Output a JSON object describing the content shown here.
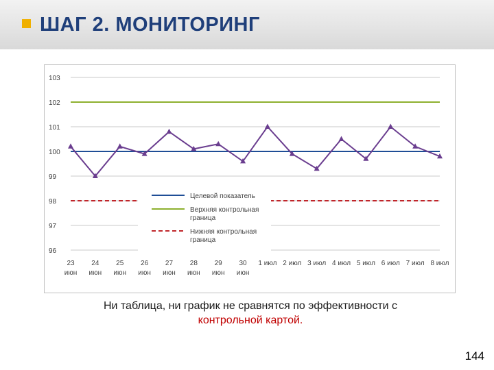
{
  "header": {
    "title": "ШАГ 2. МОНИТОРИНГ",
    "bullet_color": "#f0b000",
    "title_color": "#1f3f7a"
  },
  "chart_data": {
    "type": "line",
    "title": "",
    "xlabel": "",
    "ylabel": "",
    "ylim": [
      96,
      103
    ],
    "yticks": [
      "96",
      "97",
      "98",
      "99",
      "100",
      "101",
      "102",
      "103"
    ],
    "grid": true,
    "legend_position": "center",
    "categories": [
      [
        "23",
        "июн"
      ],
      [
        "24",
        "июн"
      ],
      [
        "25",
        "июн"
      ],
      [
        "26",
        "июн"
      ],
      [
        "27",
        "июн"
      ],
      [
        "28",
        "июн"
      ],
      [
        "29",
        "июн"
      ],
      [
        "30",
        "июн"
      ],
      [
        "1 июл",
        ""
      ],
      [
        "2 июл",
        ""
      ],
      [
        "3 июл",
        ""
      ],
      [
        "4 июл",
        ""
      ],
      [
        "5 июл",
        ""
      ],
      [
        "6 июл",
        ""
      ],
      [
        "7 июл",
        ""
      ],
      [
        "8 июл",
        ""
      ]
    ],
    "values": [
      100.2,
      99.0,
      100.2,
      99.9,
      100.8,
      100.1,
      100.3,
      99.6,
      101.0,
      99.9,
      99.3,
      100.5,
      99.7,
      101.0,
      100.2,
      99.8
    ],
    "reference_lines": [
      {
        "name": "Целевой показатель",
        "value": 100,
        "color": "#1f4e96",
        "style": "solid"
      },
      {
        "name": "Верхняя контрольная граница",
        "value": 102,
        "color": "#8db02e",
        "style": "solid"
      },
      {
        "name": "Нижняя контрольная граница",
        "value": 98,
        "color": "#c0252a",
        "style": "dashed"
      }
    ],
    "legend": [
      {
        "label_lines": [
          "Целевой показатель"
        ],
        "color": "#1f4e96",
        "style": "solid"
      },
      {
        "label_lines": [
          "Верхняя контрольная",
          "граница"
        ],
        "color": "#8db02e",
        "style": "solid"
      },
      {
        "label_lines": [
          "Нижняя контрольная",
          "граница"
        ],
        "color": "#c0252a",
        "style": "dashed"
      }
    ],
    "series_color": "#6a3d8f"
  },
  "caption": {
    "line1": "Ни таблица, ни график не сравнятся по эффективности с",
    "line2": "контрольной картой."
  },
  "page_number": "144"
}
